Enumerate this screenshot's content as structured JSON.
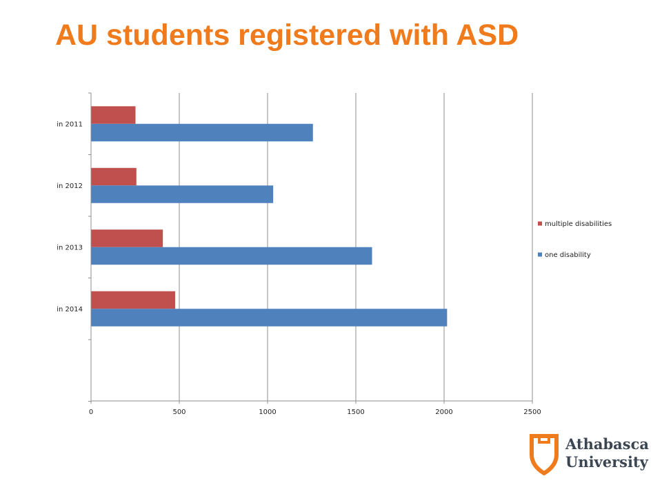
{
  "title": "AU students registered with ASD",
  "colors": {
    "title": "#f07b1c",
    "multiple": "#c0504d",
    "one": "#4f81bd",
    "grid": "#8c8c8c",
    "logo_shield": "#f07b1c",
    "logo_text": "#3b4652"
  },
  "chart_data": {
    "type": "bar",
    "orientation": "horizontal",
    "categories": [
      "in 2011",
      "in 2012",
      "in 2013",
      "in 2014"
    ],
    "series": [
      {
        "name": "multiple disabilities",
        "values": [
          250,
          255,
          405,
          475
        ]
      },
      {
        "name": "one disability",
        "values": [
          1255,
          1030,
          1590,
          2015
        ]
      }
    ],
    "xlim": [
      0,
      2500
    ],
    "xticks": [
      "0",
      "500",
      "1000",
      "1500",
      "2000",
      "2500"
    ],
    "grid": "vertical",
    "legend": "right"
  },
  "logo": {
    "icon": "shield-icon",
    "line1": "Athabasca",
    "line2": "University"
  }
}
